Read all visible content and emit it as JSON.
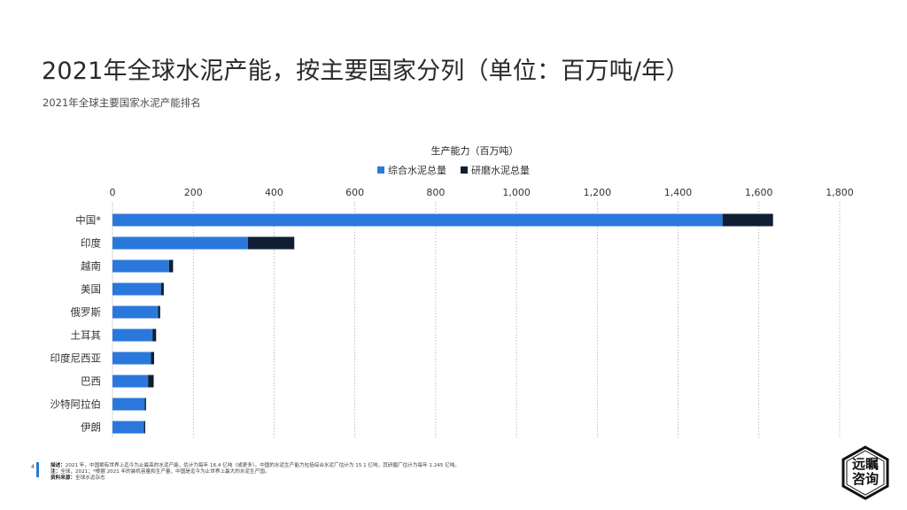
{
  "page": {
    "title": "2021年全球水泥产能，按主要国家分列（单位：百万吨/年）",
    "subtitle": "2021年全球主要国家水泥产能排名",
    "page_number": "4",
    "footer": {
      "desc_label": "描述：",
      "desc_text": "2021 年，中国拥有世界上迄今为止最高的水泥产能，估计为每年 16.4 亿吨（或更多）。中国的水泥生产能力包括综合水泥厂估计为 15.1 亿吨，其研磨厂估计为每年 1.245 亿吨。",
      "note_label": "注：",
      "note_text": "全球，2021；*根据 2021 年的装机容量和生产量，中国是迄今为止世界上最大的水泥生产国。",
      "source_label": "资料来源：",
      "source_text": "全球水泥杂志"
    },
    "logo": {
      "line1": "远瞩",
      "line2": "咨询"
    }
  },
  "chart_data": {
    "type": "bar",
    "orientation": "horizontal",
    "stacked": true,
    "title": "生产能力（百万吨）",
    "categories": [
      "中国*",
      "印度",
      "越南",
      "美国",
      "俄罗斯",
      "土耳其",
      "印度尼西亚",
      "巴西",
      "沙特阿拉伯",
      "伊朗"
    ],
    "series": [
      {
        "name": "综合水泥总量",
        "color": "#2b78dc",
        "values": [
          1510,
          335,
          140,
          120,
          113,
          99,
          95,
          88,
          80,
          78
        ]
      },
      {
        "name": "研磨水泥总量",
        "color": "#0f1f33",
        "values": [
          125,
          115,
          10,
          7,
          5,
          9,
          8,
          14,
          3,
          3
        ]
      }
    ],
    "xlim": [
      0,
      1800
    ],
    "xticks": [
      0,
      200,
      400,
      600,
      800,
      1000,
      1200,
      1400,
      1600,
      1800
    ],
    "xtick_labels": [
      "0",
      "200",
      "400",
      "600",
      "800",
      "1,000",
      "1,200",
      "1,400",
      "1,600",
      "1,800"
    ],
    "axis_position": "top",
    "grid": "vertical-dotted",
    "legend_position": "top-center"
  }
}
